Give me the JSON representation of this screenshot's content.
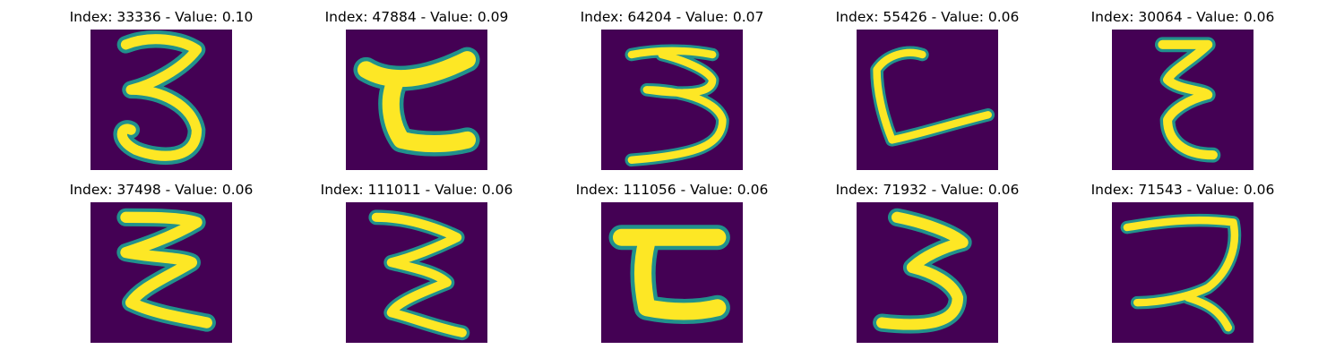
{
  "figure": {
    "background": "#ffffff",
    "colormap": "viridis",
    "colors": {
      "background": "#440154",
      "stroke_edge": "#21918c",
      "stroke_core": "#fde725"
    },
    "panels": [
      {
        "title": "Index: 33336 - Value: 0.10",
        "index": 33336,
        "value": 0.1
      },
      {
        "title": "Index: 47884 - Value: 0.09",
        "index": 47884,
        "value": 0.09
      },
      {
        "title": "Index: 64204 - Value: 0.07",
        "index": 64204,
        "value": 0.07
      },
      {
        "title": "Index: 55426 - Value: 0.06",
        "index": 55426,
        "value": 0.06
      },
      {
        "title": "Index: 30064 - Value: 0.06",
        "index": 30064,
        "value": 0.06
      },
      {
        "title": "Index: 37498 - Value: 0.06",
        "index": 37498,
        "value": 0.06
      },
      {
        "title": "Index: 111011 - Value: 0.06",
        "index": 111011,
        "value": 0.06
      },
      {
        "title": "Index: 111056 - Value: 0.06",
        "index": 111056,
        "value": 0.06
      },
      {
        "title": "Index: 71932 - Value: 0.06",
        "index": 71932,
        "value": 0.06
      },
      {
        "title": "Index: 71543 - Value: 0.06",
        "index": 71543,
        "value": 0.06
      }
    ]
  }
}
